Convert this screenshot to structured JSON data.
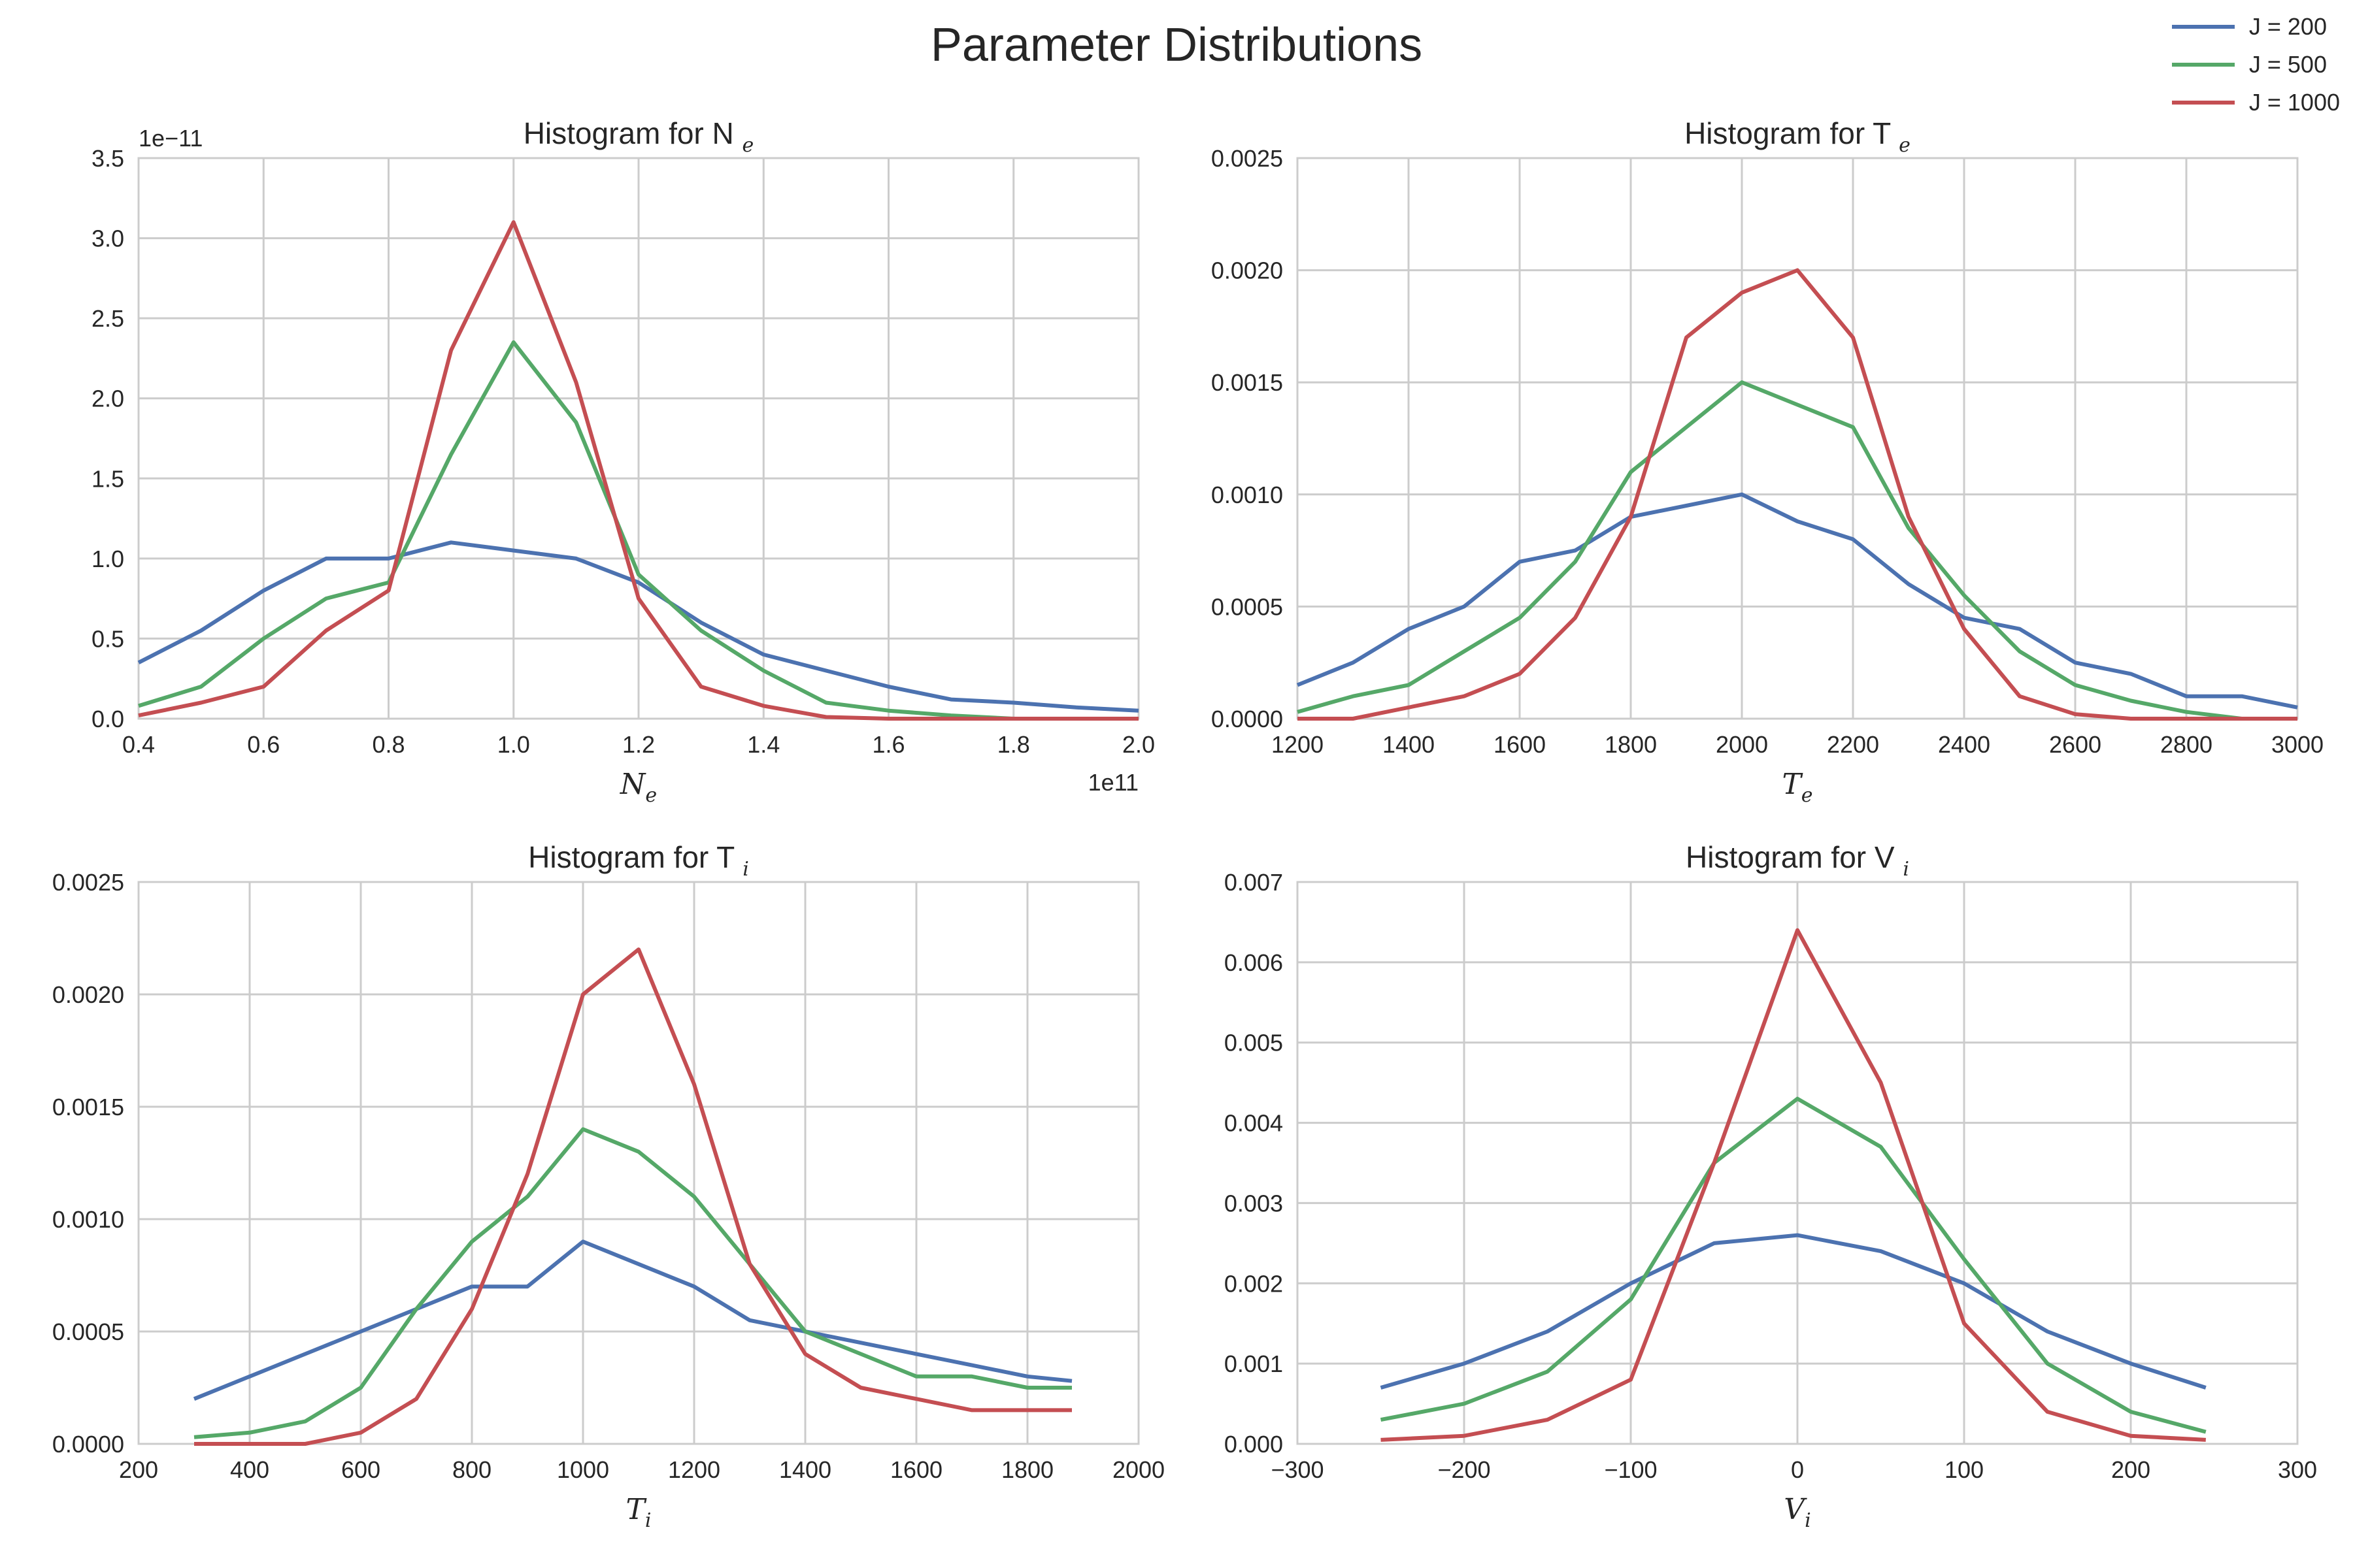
{
  "figure": {
    "title": "Parameter Distributions",
    "legend": [
      {
        "label": "J = 200",
        "color": "#4c72b0"
      },
      {
        "label": "J = 500",
        "color": "#55a868"
      },
      {
        "label": "J = 1000",
        "color": "#c44e52"
      }
    ]
  },
  "chart_data": [
    {
      "type": "line",
      "title": "Histogram for N",
      "title_subscript": "e",
      "xlabel": "N",
      "xlabel_subscript": "e",
      "xlim": [
        0.4,
        2.0
      ],
      "ylim": [
        0,
        3.5
      ],
      "xticks": [
        "0.4",
        "0.6",
        "0.8",
        "1.0",
        "1.2",
        "1.4",
        "1.6",
        "1.8",
        "2.0"
      ],
      "yticks": [
        "0.0",
        "0.5",
        "1.0",
        "1.5",
        "2.0",
        "2.5",
        "3.0",
        "3.5"
      ],
      "x_offset_text": "1e11",
      "y_offset_text": "1e−11",
      "grid": true,
      "series": [
        {
          "name": "J = 200",
          "x": [
            0.4,
            0.5,
            0.6,
            0.7,
            0.8,
            0.9,
            1.0,
            1.1,
            1.2,
            1.3,
            1.4,
            1.5,
            1.6,
            1.7,
            1.8,
            1.9,
            2.0
          ],
          "y": [
            0.35,
            0.55,
            0.8,
            1.0,
            1.0,
            1.1,
            1.05,
            1.0,
            0.85,
            0.6,
            0.4,
            0.3,
            0.2,
            0.12,
            0.1,
            0.07,
            0.05
          ]
        },
        {
          "name": "J = 500",
          "x": [
            0.4,
            0.5,
            0.6,
            0.7,
            0.8,
            0.9,
            1.0,
            1.1,
            1.2,
            1.3,
            1.4,
            1.5,
            1.6,
            1.7,
            1.8,
            1.9,
            2.0
          ],
          "y": [
            0.08,
            0.2,
            0.5,
            0.75,
            0.85,
            1.65,
            2.35,
            1.85,
            0.9,
            0.55,
            0.3,
            0.1,
            0.05,
            0.02,
            0.0,
            0.0,
            0.0
          ]
        },
        {
          "name": "J = 1000",
          "x": [
            0.4,
            0.5,
            0.6,
            0.7,
            0.8,
            0.9,
            1.0,
            1.1,
            1.2,
            1.3,
            1.4,
            1.5,
            1.6,
            1.7,
            1.8,
            1.9,
            2.0
          ],
          "y": [
            0.02,
            0.1,
            0.2,
            0.55,
            0.8,
            2.3,
            3.1,
            2.1,
            0.75,
            0.2,
            0.08,
            0.01,
            0.0,
            0.0,
            0.0,
            0.0,
            0.0
          ]
        }
      ]
    },
    {
      "type": "line",
      "title": "Histogram for T",
      "title_subscript": "e",
      "xlabel": "T",
      "xlabel_subscript": "e",
      "xlim": [
        1200,
        3000
      ],
      "ylim": [
        0,
        0.0025
      ],
      "xticks": [
        "1200",
        "1400",
        "1600",
        "1800",
        "2000",
        "2200",
        "2400",
        "2600",
        "2800",
        "3000"
      ],
      "yticks": [
        "0.0000",
        "0.0005",
        "0.0010",
        "0.0015",
        "0.0020",
        "0.0025"
      ],
      "grid": true,
      "series": [
        {
          "name": "J = 200",
          "x": [
            1200,
            1300,
            1400,
            1500,
            1600,
            1700,
            1800,
            1900,
            2000,
            2100,
            2200,
            2300,
            2400,
            2500,
            2600,
            2700,
            2800,
            2900,
            3000
          ],
          "y": [
            0.00015,
            0.00025,
            0.0004,
            0.0005,
            0.0007,
            0.00075,
            0.0009,
            0.00095,
            0.001,
            0.00088,
            0.0008,
            0.0006,
            0.00045,
            0.0004,
            0.00025,
            0.0002,
            0.0001,
            0.0001,
            5e-05
          ]
        },
        {
          "name": "J = 500",
          "x": [
            1200,
            1300,
            1400,
            1500,
            1600,
            1700,
            1800,
            1900,
            2000,
            2100,
            2200,
            2300,
            2400,
            2500,
            2600,
            2700,
            2800,
            2900,
            3000
          ],
          "y": [
            3e-05,
            0.0001,
            0.00015,
            0.0003,
            0.00045,
            0.0007,
            0.0011,
            0.0013,
            0.0015,
            0.0014,
            0.0013,
            0.00085,
            0.00055,
            0.0003,
            0.00015,
            8e-05,
            3e-05,
            0.0,
            0.0
          ]
        },
        {
          "name": "J = 1000",
          "x": [
            1200,
            1300,
            1400,
            1500,
            1600,
            1700,
            1800,
            1900,
            2000,
            2100,
            2200,
            2300,
            2400,
            2500,
            2600,
            2700,
            2800,
            2900,
            3000
          ],
          "y": [
            0.0,
            0.0,
            5e-05,
            0.0001,
            0.0002,
            0.00045,
            0.0009,
            0.0017,
            0.0019,
            0.002,
            0.0017,
            0.0009,
            0.0004,
            0.0001,
            2e-05,
            0.0,
            0.0,
            0.0,
            0.0
          ]
        }
      ]
    },
    {
      "type": "line",
      "title": "Histogram for T",
      "title_subscript": "i",
      "xlabel": "T",
      "xlabel_subscript": "i",
      "xlim": [
        200,
        2000
      ],
      "ylim": [
        0,
        0.0025
      ],
      "xticks": [
        "200",
        "400",
        "600",
        "800",
        "1000",
        "1200",
        "1400",
        "1600",
        "1800",
        "2000"
      ],
      "yticks": [
        "0.0000",
        "0.0005",
        "0.0010",
        "0.0015",
        "0.0020",
        "0.0025"
      ],
      "grid": true,
      "series": [
        {
          "name": "J = 200",
          "x": [
            300,
            400,
            500,
            600,
            700,
            800,
            900,
            1000,
            1100,
            1200,
            1300,
            1400,
            1500,
            1600,
            1700,
            1800,
            1880
          ],
          "y": [
            0.0002,
            0.0003,
            0.0004,
            0.0005,
            0.0006,
            0.0007,
            0.0007,
            0.0009,
            0.0008,
            0.0007,
            0.00055,
            0.0005,
            0.00045,
            0.0004,
            0.00035,
            0.0003,
            0.00028
          ]
        },
        {
          "name": "J = 500",
          "x": [
            300,
            400,
            500,
            600,
            700,
            800,
            900,
            1000,
            1100,
            1200,
            1300,
            1400,
            1500,
            1600,
            1700,
            1800,
            1880
          ],
          "y": [
            3e-05,
            5e-05,
            0.0001,
            0.00025,
            0.0006,
            0.0009,
            0.0011,
            0.0014,
            0.0013,
            0.0011,
            0.0008,
            0.0005,
            0.0004,
            0.0003,
            0.0003,
            0.00025,
            0.00025
          ]
        },
        {
          "name": "J = 1000",
          "x": [
            300,
            400,
            500,
            600,
            700,
            800,
            900,
            1000,
            1100,
            1200,
            1300,
            1400,
            1500,
            1600,
            1700,
            1800,
            1880
          ],
          "y": [
            0.0,
            0.0,
            0.0,
            5e-05,
            0.0002,
            0.0006,
            0.0012,
            0.002,
            0.0022,
            0.0016,
            0.0008,
            0.0004,
            0.00025,
            0.0002,
            0.00015,
            0.00015,
            0.00015
          ]
        }
      ]
    },
    {
      "type": "line",
      "title": "Histogram for V",
      "title_subscript": "i",
      "xlabel": "V",
      "xlabel_subscript": "i",
      "xlim": [
        -300,
        300
      ],
      "ylim": [
        0,
        0.007
      ],
      "xticks": [
        "−300",
        "−200",
        "−100",
        "0",
        "100",
        "200",
        "300"
      ],
      "yticks": [
        "0.000",
        "0.001",
        "0.002",
        "0.003",
        "0.004",
        "0.005",
        "0.006",
        "0.007"
      ],
      "grid": true,
      "series": [
        {
          "name": "J = 200",
          "x": [
            -250,
            -200,
            -150,
            -100,
            -50,
            0,
            50,
            100,
            150,
            200,
            245
          ],
          "y": [
            0.0007,
            0.001,
            0.0014,
            0.002,
            0.0025,
            0.0026,
            0.0024,
            0.002,
            0.0014,
            0.001,
            0.0007
          ]
        },
        {
          "name": "J = 500",
          "x": [
            -250,
            -200,
            -150,
            -100,
            -50,
            0,
            50,
            100,
            150,
            200,
            245
          ],
          "y": [
            0.0003,
            0.0005,
            0.0009,
            0.0018,
            0.0035,
            0.0043,
            0.0037,
            0.0023,
            0.001,
            0.0004,
            0.00015
          ]
        },
        {
          "name": "J = 1000",
          "x": [
            -250,
            -200,
            -150,
            -100,
            -50,
            0,
            50,
            100,
            150,
            200,
            245
          ],
          "y": [
            5e-05,
            0.0001,
            0.0003,
            0.0008,
            0.0035,
            0.0064,
            0.0045,
            0.0015,
            0.0004,
            0.0001,
            5e-05
          ]
        }
      ]
    }
  ]
}
